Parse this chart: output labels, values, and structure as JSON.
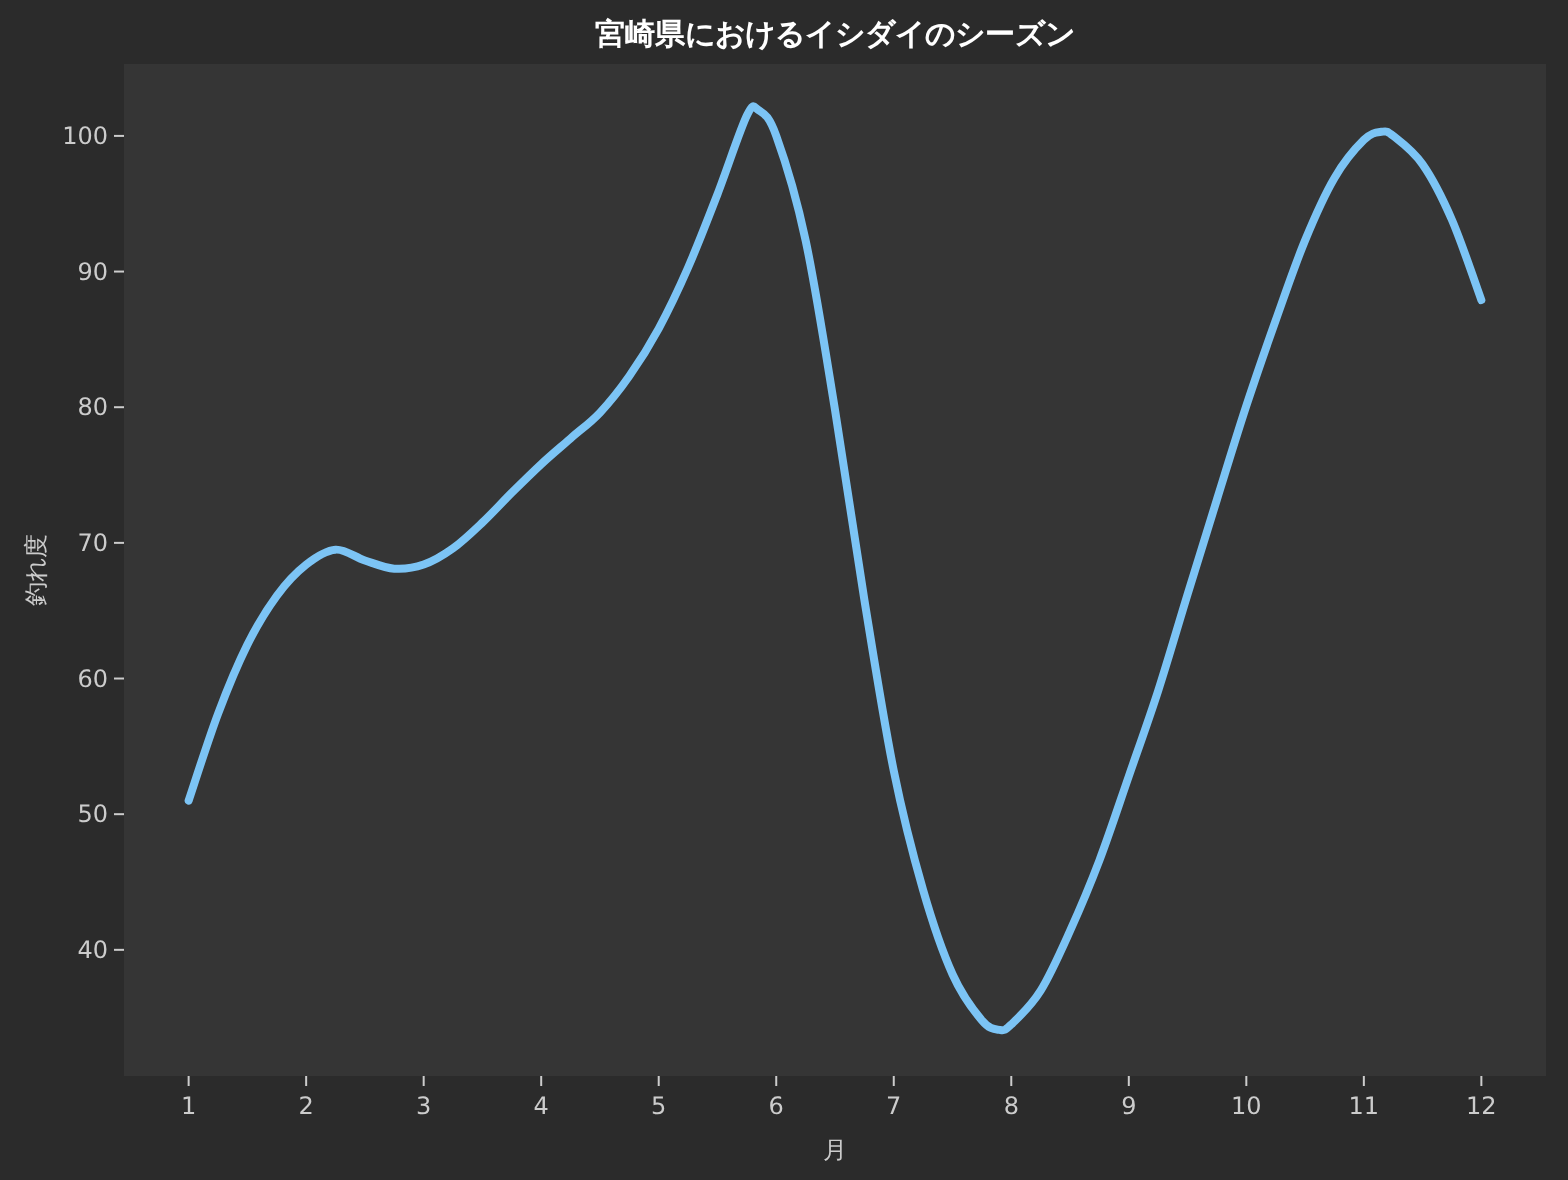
{
  "chart_data": {
    "type": "line",
    "title": "宮崎県におけるイシダイのシーズン",
    "xlabel": "月",
    "ylabel": "釣れ度",
    "x": [
      1,
      1.25,
      1.5,
      1.75,
      2,
      2.25,
      2.5,
      2.75,
      3,
      3.25,
      3.5,
      3.75,
      4,
      4.25,
      4.5,
      4.75,
      5,
      5.25,
      5.5,
      5.75,
      5.85,
      6,
      6.25,
      6.5,
      6.75,
      7,
      7.25,
      7.5,
      7.75,
      7.9,
      8,
      8.25,
      8.5,
      8.75,
      9,
      9.25,
      9.5,
      9.75,
      10,
      10.25,
      10.5,
      10.75,
      11,
      11.15,
      11.25,
      11.5,
      11.75,
      12
    ],
    "series": [
      {
        "color": "#7cc4f5",
        "values": [
          51.0,
          57.4,
          62.5,
          66.1,
          68.4,
          69.5,
          68.7,
          68.1,
          68.4,
          69.6,
          71.5,
          73.7,
          75.8,
          77.7,
          79.6,
          82.3,
          85.8,
          90.3,
          95.7,
          101.5,
          101.9,
          100,
          92.3,
          79.8,
          65.8,
          53.2,
          44.4,
          38.2,
          34.8,
          34.1,
          34.5,
          37.0,
          41.4,
          46.6,
          52.8,
          59.1,
          66.2,
          73.2,
          80.1,
          86.4,
          92.3,
          96.9,
          99.7,
          100.3,
          100,
          97.9,
          93.8,
          87.9
        ]
      }
    ],
    "xlim": [
      0.45,
      12.55
    ],
    "ylim": [
      30.7,
      105.3
    ],
    "xticks": [
      1,
      2,
      3,
      4,
      5,
      6,
      7,
      8,
      9,
      10,
      11,
      12
    ],
    "yticks": [
      40,
      50,
      60,
      70,
      80,
      90,
      100
    ]
  }
}
